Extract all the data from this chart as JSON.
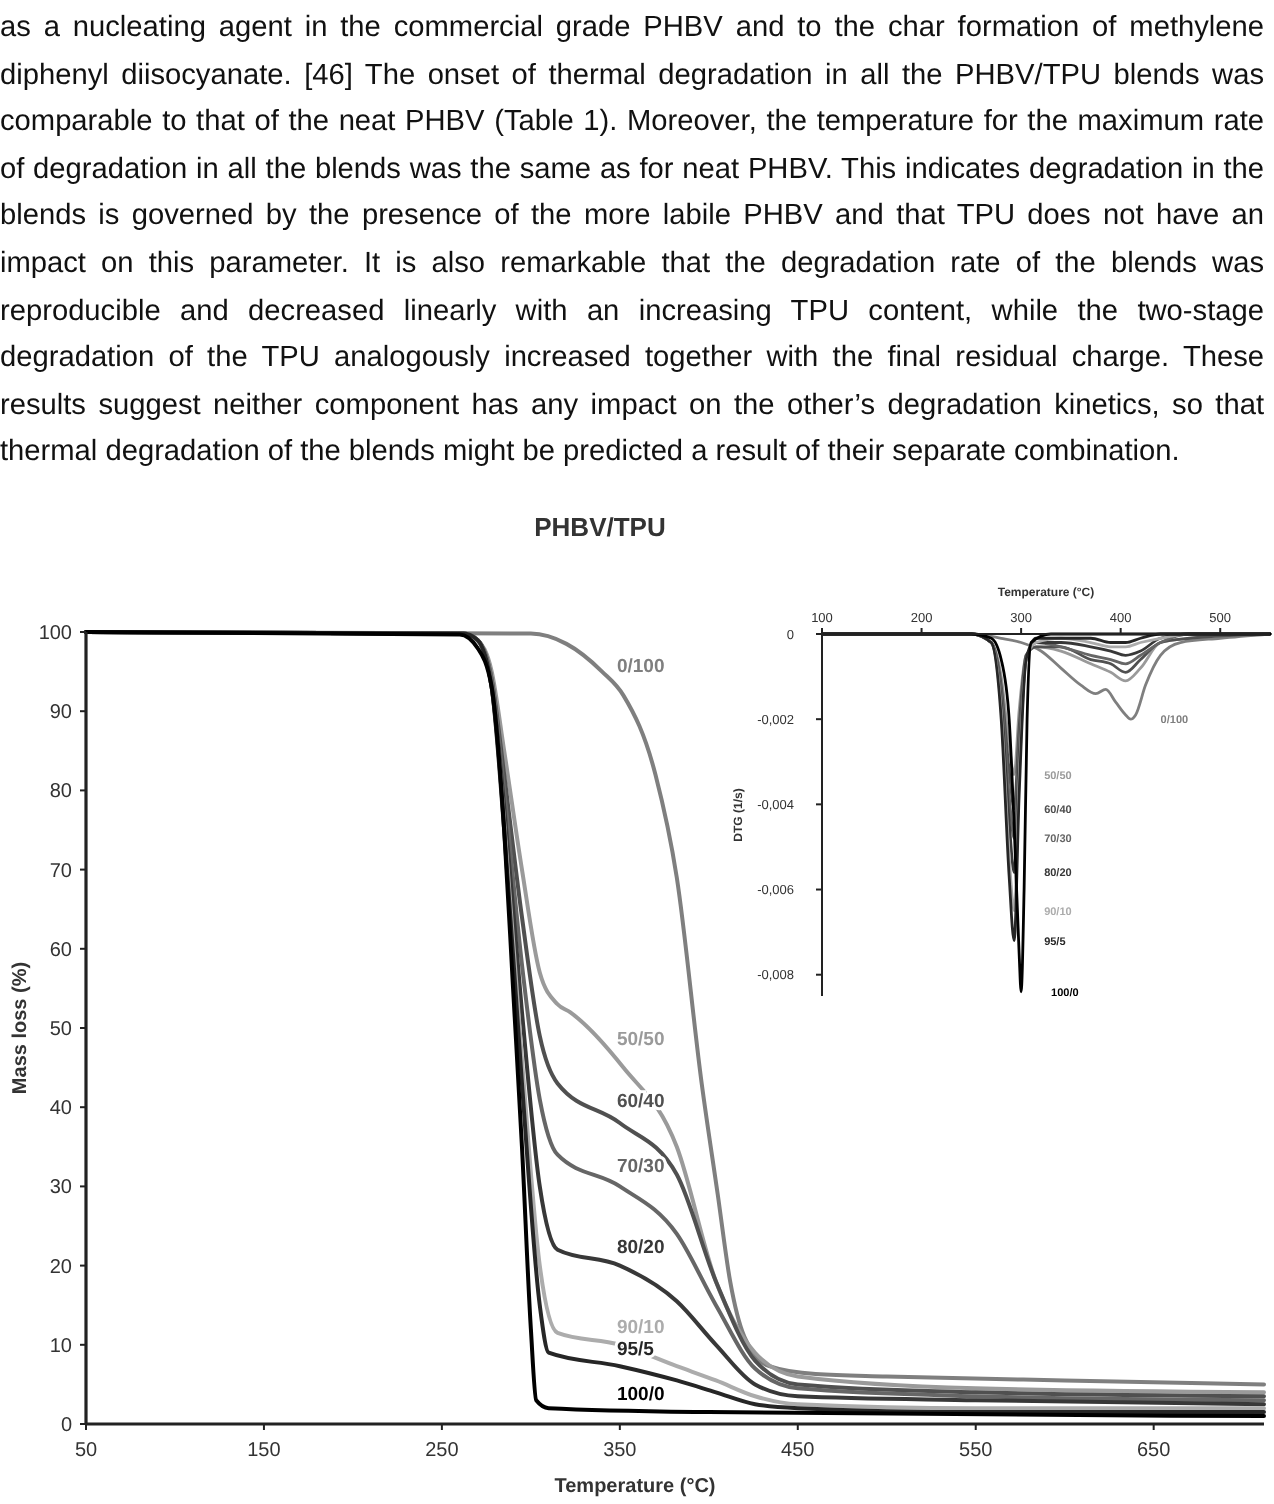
{
  "chart_data": [
    {
      "type": "line",
      "title": "PHBV/TPU",
      "xlabel": "Temperature (°C)",
      "ylabel": "Mass loss (%)",
      "xlim": [
        50,
        712
      ],
      "xticks": [
        50,
        150,
        250,
        350,
        450,
        550,
        650
      ],
      "ylim": [
        0,
        100
      ],
      "yticks": [
        0,
        10,
        20,
        30,
        40,
        50,
        60,
        70,
        80,
        90,
        100
      ],
      "grid": false,
      "marker": "none",
      "line_style": "solid",
      "annotations": [
        "as a nucleating agent in the commercial grade PHBV and to the char formation of methylene diphenyl diisocyanate. [46] The onset of thermal degradation in all the PHBV/TPU blends was comparable to that of the neat PHBV (Table 1). Moreover, the temperature for the maximum rate of degradation in all the blends was the same as for neat PHBV. This indicates degradation in the blends is governed by the presence of the more labile PHBV and that TPU does not have an impact on this parameter. It is also remarkable that the degradation rate of the blends was reproducible and decreased linearly with an increasing TPU content, while the two-stage degradation of the TPU analogously increased together with the final residual charge. These results suggest neither component has any impact on the other’s degradation kinetics, so that thermal degradation of the blends might be predicted a result of their separate combination."
      ],
      "series": [
        {
          "name": "0/100",
          "color": "#7f7f7f",
          "x": [
            50,
            300,
            320,
            340,
            352,
            370,
            382,
            396,
            405,
            412,
            420,
            434,
            460,
            500,
            600,
            712
          ],
          "values": [
            100,
            99.8,
            98.5,
            95,
            92,
            82,
            69,
            43,
            29,
            18,
            11,
            7.3,
            6.3,
            6,
            5.5,
            5
          ]
        },
        {
          "name": "50/50",
          "color": "#9a9a9a",
          "x": [
            50,
            262,
            270,
            278,
            285,
            295,
            305,
            315,
            322,
            352,
            382,
            404,
            426,
            450,
            550,
            712
          ],
          "values": [
            100,
            99.8,
            99,
            95,
            85,
            70,
            57,
            53,
            52,
            45,
            35,
            18,
            9,
            6,
            4.5,
            4
          ]
        },
        {
          "name": "60/40",
          "color": "#505050",
          "x": [
            50,
            262,
            270,
            278,
            285,
            295,
            305,
            315,
            350,
            382,
            404,
            426,
            450,
            550,
            712
          ],
          "values": [
            100,
            99.8,
            99,
            94,
            82,
            64,
            49,
            43,
            38,
            31.5,
            18,
            8,
            5,
            4,
            3.5
          ]
        },
        {
          "name": "70/30",
          "color": "#666666",
          "x": [
            50,
            262,
            270,
            278,
            285,
            295,
            305,
            315,
            350,
            382,
            404,
            426,
            450,
            550,
            712
          ],
          "values": [
            100,
            99.8,
            99,
            94,
            80,
            58,
            41,
            34,
            30,
            24,
            15,
            7,
            4.5,
            3.5,
            3
          ]
        },
        {
          "name": "80/20",
          "color": "#383838",
          "x": [
            50,
            262,
            270,
            278,
            285,
            295,
            305,
            315,
            350,
            382,
            404,
            426,
            450,
            550,
            712
          ],
          "values": [
            100,
            99.8,
            99,
            93,
            78,
            52,
            30,
            22,
            20,
            15.5,
            10,
            5,
            3.5,
            3,
            2.5
          ]
        },
        {
          "name": "90/10",
          "color": "#acacac",
          "x": [
            50,
            262,
            270,
            278,
            285,
            295,
            305,
            315,
            350,
            382,
            404,
            426,
            450,
            550,
            712
          ],
          "values": [
            100,
            99.8,
            99,
            93,
            76,
            46,
            20,
            11.5,
            10,
            7.3,
            5.5,
            3.5,
            2.5,
            2,
            2
          ]
        },
        {
          "name": "95/5",
          "color": "#262626",
          "x": [
            50,
            262,
            270,
            278,
            285,
            295,
            305,
            310,
            350,
            382,
            404,
            426,
            450,
            550,
            712
          ],
          "values": [
            100,
            99.8,
            99,
            93,
            75,
            43,
            15,
            9,
            7.3,
            5.5,
            4,
            2.5,
            2,
            1.5,
            1.5
          ]
        },
        {
          "name": "100/0",
          "color": "#000000",
          "x": [
            50,
            260,
            270,
            278,
            285,
            290,
            295,
            300,
            303,
            310,
            400,
            712
          ],
          "values": [
            100,
            99.7,
            98,
            93,
            75,
            55,
            35,
            12,
            3,
            2,
            1.5,
            1
          ]
        }
      ]
    },
    {
      "type": "line",
      "xlabel": "Temperature (°C)",
      "ylabel": "DTG (1/s)",
      "xlim": [
        100,
        550
      ],
      "xticks": [
        100,
        200,
        300,
        400,
        500
      ],
      "ylim": [
        -0.0085,
        0
      ],
      "yticks": [
        {
          "value": 0,
          "label": "0"
        },
        {
          "value": -0.002,
          "label": "-0,002"
        },
        {
          "value": -0.004,
          "label": "-0,004"
        },
        {
          "value": -0.006,
          "label": "-0,006"
        },
        {
          "value": -0.008,
          "label": "-0,008"
        }
      ],
      "grid": false,
      "marker": "none",
      "line_style": "solid",
      "series": [
        {
          "name": "0/100",
          "color": "#7f7f7f",
          "x": [
            100,
            250,
            280,
            300,
            320,
            340,
            360,
            375,
            385,
            395,
            405,
            410,
            415,
            425,
            440,
            460,
            500,
            550
          ],
          "values": [
            0,
            0,
            -0.0001,
            -0.0002,
            -0.0004,
            -0.0008,
            -0.0012,
            -0.0014,
            -0.0013,
            -0.0016,
            -0.0019,
            -0.002,
            -0.0019,
            -0.0012,
            -0.0005,
            -0.0002,
            -0.0001,
            0
          ]
        },
        {
          "name": "50/50",
          "color": "#9a9a9a",
          "x": [
            100,
            250,
            270,
            280,
            288,
            293,
            298,
            305,
            315,
            340,
            370,
            390,
            405,
            420,
            440,
            470,
            550
          ],
          "values": [
            0,
            0,
            -0.0002,
            -0.001,
            -0.0026,
            -0.0033,
            -0.0018,
            -0.0005,
            -0.0003,
            -0.0004,
            -0.0007,
            -0.0009,
            -0.0011,
            -0.0008,
            -0.0002,
            -0.0001,
            0
          ]
        },
        {
          "name": "60/40",
          "color": "#505050",
          "x": [
            100,
            250,
            270,
            280,
            288,
            293,
            298,
            305,
            315,
            340,
            370,
            390,
            405,
            420,
            440,
            470,
            550
          ],
          "values": [
            0,
            0,
            -0.0002,
            -0.0012,
            -0.0032,
            -0.0041,
            -0.0022,
            -0.0005,
            -0.0003,
            -0.0003,
            -0.0006,
            -0.0007,
            -0.0009,
            -0.0006,
            -0.0002,
            -0.0001,
            0
          ]
        },
        {
          "name": "70/30",
          "color": "#666666",
          "x": [
            100,
            250,
            270,
            280,
            288,
            293,
            298,
            305,
            315,
            340,
            370,
            390,
            405,
            420,
            440,
            470,
            550
          ],
          "values": [
            0,
            0,
            -0.0002,
            -0.0014,
            -0.0038,
            -0.0048,
            -0.0026,
            -0.0006,
            -0.0002,
            -0.0003,
            -0.0005,
            -0.0006,
            -0.0007,
            -0.0005,
            -0.0002,
            0,
            0
          ]
        },
        {
          "name": "80/20",
          "color": "#383838",
          "x": [
            100,
            250,
            270,
            280,
            288,
            293,
            298,
            305,
            315,
            340,
            370,
            390,
            405,
            420,
            440,
            470,
            550
          ],
          "values": [
            0,
            0,
            -0.0002,
            -0.0016,
            -0.0044,
            -0.0056,
            -0.003,
            -0.0006,
            -0.0002,
            -0.0002,
            -0.0003,
            -0.0004,
            -0.0005,
            -0.0004,
            -0.0001,
            0,
            0
          ]
        },
        {
          "name": "90/10",
          "color": "#acacac",
          "x": [
            100,
            250,
            270,
            280,
            288,
            293,
            298,
            305,
            315,
            340,
            370,
            390,
            405,
            420,
            440,
            470,
            550
          ],
          "values": [
            0,
            0,
            -0.0002,
            -0.0018,
            -0.0052,
            -0.0065,
            -0.0034,
            -0.0006,
            -0.0002,
            -0.0001,
            -0.0002,
            -0.0003,
            -0.0003,
            -0.0002,
            -0.0001,
            0,
            0
          ]
        },
        {
          "name": "95/5",
          "color": "#262626",
          "x": [
            100,
            250,
            270,
            280,
            288,
            293,
            298,
            305,
            315,
            340,
            370,
            390,
            405,
            420,
            440,
            470,
            550
          ],
          "values": [
            0,
            0,
            -0.0002,
            -0.002,
            -0.0057,
            -0.0072,
            -0.0038,
            -0.0006,
            -0.0001,
            -0.0001,
            -0.0001,
            -0.0002,
            -0.0002,
            -0.0001,
            0,
            0,
            0
          ]
        },
        {
          "name": "100/0",
          "color": "#000000",
          "x": [
            100,
            250,
            270,
            280,
            288,
            293,
            298,
            300,
            303,
            306,
            310,
            330,
            550
          ],
          "values": [
            0,
            0,
            -0.0001,
            -0.0006,
            -0.002,
            -0.0045,
            -0.0075,
            -0.0084,
            -0.006,
            -0.002,
            -0.0002,
            0,
            0
          ]
        }
      ]
    }
  ]
}
